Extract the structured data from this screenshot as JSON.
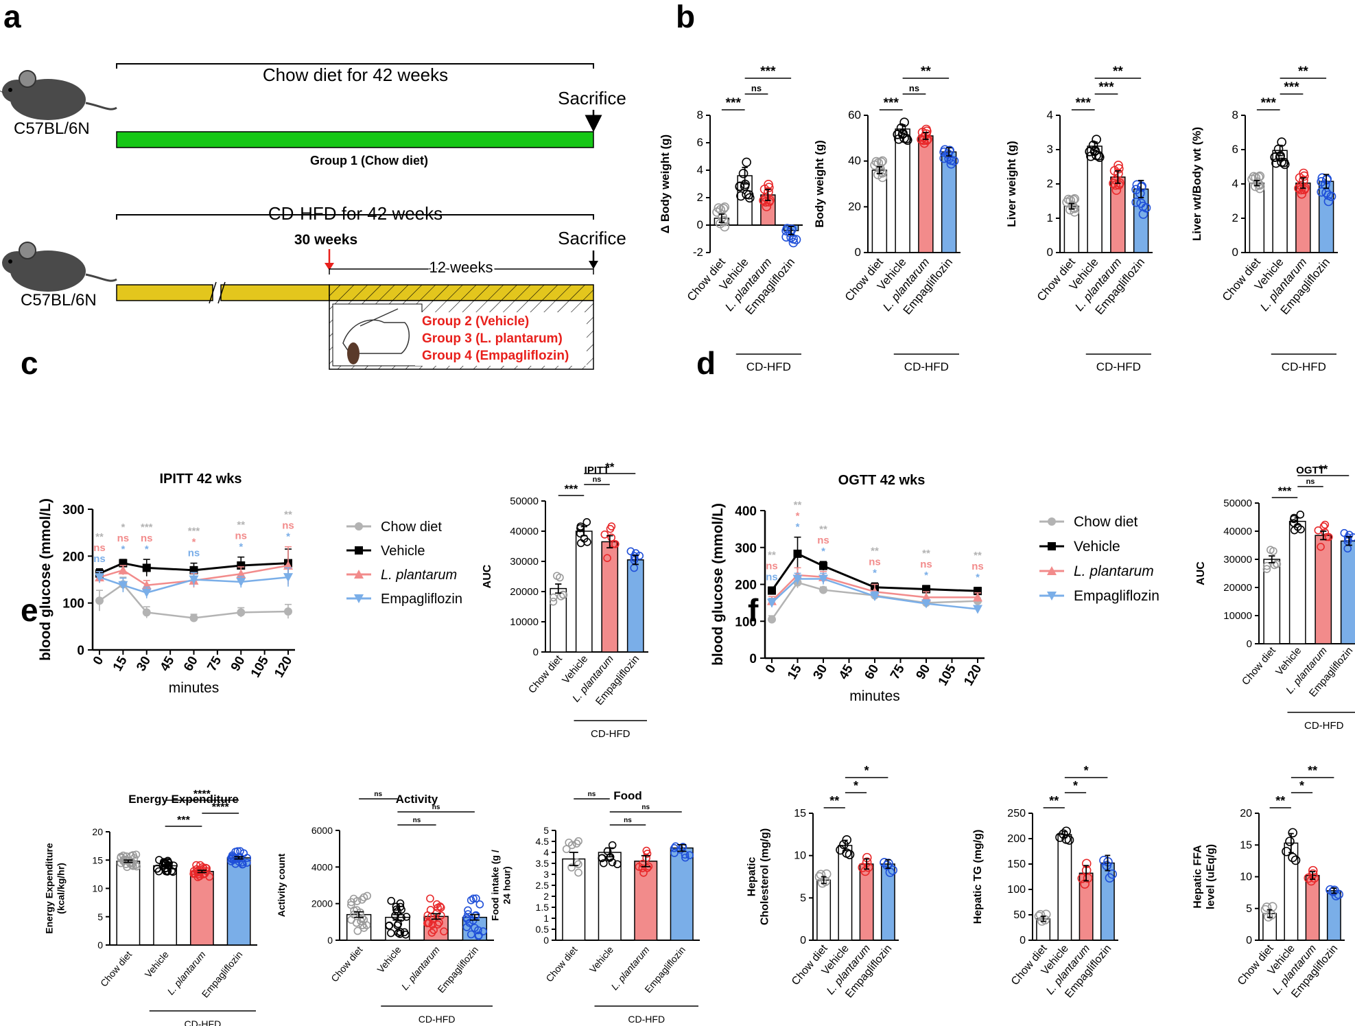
{
  "panel_labels": [
    "a",
    "b",
    "c",
    "d",
    "e",
    "f"
  ],
  "colors": {
    "chow": "#b3b3b3",
    "vehicle": "#000000",
    "lp": "#f28b8b",
    "lp_dot": "#e8282a",
    "empa": "#7aaee8",
    "empa_dot": "#2050d8",
    "green": "#16c716",
    "yellow": "#e3c61d",
    "red": "#e8201c"
  },
  "schematic": {
    "strain_label": "C57BL/6N",
    "chow_title": "Chow diet for 42 weeks",
    "sacrifice": "Sacrifice",
    "group1": "Group 1 (Chow diet)",
    "hfd_title": "CD-HFD for 42 weeks",
    "start_label": "30 weeks",
    "treatment_span": "12 weeks",
    "groups": [
      "Group 2 (Vehicle)",
      "Group 3 (L. plantarum)",
      "Group 4 (Empagliflozin)"
    ]
  },
  "common": {
    "groups": [
      "Chow diet",
      "Vehicle",
      "L. plantarum",
      "Empagliflozin"
    ],
    "hfd_label": "CD-HFD",
    "minutes": "minutes",
    "time_ticks": [
      "0",
      "15",
      "30",
      "45",
      "60",
      "75",
      "90",
      "105",
      "120"
    ]
  },
  "chart_data": [
    {
      "id": "b1",
      "type": "bar",
      "ylabel": "Δ Body weight  (g)",
      "ylim": [
        -2,
        8
      ],
      "yticks": [
        "-2",
        "0",
        "2",
        "4",
        "6",
        "8"
      ],
      "categories": [
        "Chow diet",
        "Vehicle",
        "L. plantarum",
        "Empagliflozin"
      ],
      "values": [
        0.5,
        3.6,
        2.2,
        -0.4
      ],
      "errors": [
        0.3,
        0.6,
        0.4,
        0.3
      ],
      "sig": [
        {
          "from": 0,
          "to": 1,
          "label": "***"
        },
        {
          "from": 1,
          "to": 2,
          "label": "ns"
        },
        {
          "from": 1,
          "to": 3,
          "label": "***"
        }
      ]
    },
    {
      "id": "b2",
      "type": "bar",
      "ylabel": "Body weight  (g)",
      "ylim": [
        0,
        60
      ],
      "yticks": [
        "0",
        "20",
        "40",
        "60"
      ],
      "categories": [
        "Chow diet",
        "Vehicle",
        "L. plantarum",
        "Empagliflozin"
      ],
      "values": [
        36,
        54,
        51,
        44
      ],
      "errors": [
        1.5,
        1.8,
        1.5,
        1.8
      ],
      "sig": [
        {
          "from": 0,
          "to": 1,
          "label": "***"
        },
        {
          "from": 1,
          "to": 2,
          "label": "ns"
        },
        {
          "from": 1,
          "to": 3,
          "label": "**"
        }
      ]
    },
    {
      "id": "b3",
      "type": "bar",
      "ylabel": "Liver weight  (g)",
      "ylim": [
        0,
        4
      ],
      "yticks": [
        "0",
        "1",
        "2",
        "3",
        "4"
      ],
      "categories": [
        "Chow diet",
        "Vehicle",
        "L. plantarum",
        "Empagliflozin"
      ],
      "values": [
        1.35,
        3.1,
        2.2,
        1.85
      ],
      "errors": [
        0.08,
        0.12,
        0.18,
        0.25
      ],
      "sig": [
        {
          "from": 0,
          "to": 1,
          "label": "***"
        },
        {
          "from": 1,
          "to": 2,
          "label": "***"
        },
        {
          "from": 1,
          "to": 3,
          "label": "**"
        }
      ]
    },
    {
      "id": "b4",
      "type": "bar",
      "ylabel": "Liver wt/Body wt  (%)",
      "ylim": [
        0,
        8
      ],
      "yticks": [
        "0",
        "2",
        "4",
        "6",
        "8"
      ],
      "categories": [
        "Chow diet",
        "Vehicle",
        "L. plantarum",
        "Empagliflozin"
      ],
      "values": [
        4.05,
        5.95,
        4.05,
        4.15
      ],
      "errors": [
        0.15,
        0.3,
        0.3,
        0.4
      ],
      "sig": [
        {
          "from": 0,
          "to": 1,
          "label": "***"
        },
        {
          "from": 1,
          "to": 2,
          "label": "***"
        },
        {
          "from": 1,
          "to": 3,
          "label": "**"
        }
      ]
    },
    {
      "id": "c_line",
      "type": "line",
      "title": "IPITT  42 wks",
      "ylabel": "blood glucose (mmol/L)",
      "xlabel": "minutes",
      "ylim": [
        0,
        300
      ],
      "yticks": [
        "0",
        "100",
        "200",
        "300"
      ],
      "x": [
        0,
        15,
        30,
        60,
        90,
        120
      ],
      "series": [
        {
          "name": "Chow diet",
          "values": [
            105,
            140,
            80,
            68,
            80,
            82
          ],
          "errors": [
            22,
            15,
            12,
            8,
            10,
            15
          ]
        },
        {
          "name": "Vehicle",
          "values": [
            163,
            185,
            175,
            170,
            180,
            185
          ],
          "errors": [
            10,
            8,
            18,
            15,
            18,
            30
          ]
        },
        {
          "name": "L. plantarum",
          "values": [
            155,
            170,
            138,
            148,
            162,
            180
          ],
          "errors": [
            12,
            10,
            10,
            15,
            15,
            40
          ]
        },
        {
          "name": "Empagliflozin",
          "values": [
            155,
            138,
            122,
            150,
            145,
            155
          ],
          "errors": [
            12,
            15,
            12,
            15,
            12,
            20
          ]
        }
      ],
      "star_rows": [
        [
          "**",
          "*",
          "***",
          "***",
          "**",
          "**"
        ],
        [
          "ns",
          "ns",
          "ns",
          "*",
          "ns",
          "ns"
        ],
        [
          "ns",
          "*",
          "*",
          "ns",
          "*",
          "*"
        ]
      ]
    },
    {
      "id": "c_auc",
      "type": "bar",
      "title": "IPITT",
      "ylabel": "AUC",
      "ylim": [
        0,
        50000
      ],
      "yticks": [
        "0",
        "10000",
        "20000",
        "30000",
        "40000",
        "50000"
      ],
      "categories": [
        "Chow diet",
        "Vehicle",
        "L. plantarum",
        "Empagliflozin"
      ],
      "values": [
        21000,
        40000,
        36500,
        30500
      ],
      "errors": [
        1500,
        1500,
        2000,
        1500
      ],
      "sig": [
        {
          "from": 0,
          "to": 1,
          "label": "***"
        },
        {
          "from": 1,
          "to": 2,
          "label": "ns"
        },
        {
          "from": 1,
          "to": 3,
          "label": "**"
        }
      ]
    },
    {
      "id": "d_line",
      "type": "line",
      "title": "OGTT  42 wks",
      "ylabel": "blood glucose (mmol/L)",
      "xlabel": "minutes",
      "ylim": [
        0,
        400
      ],
      "yticks": [
        "0",
        "100",
        "200",
        "300",
        "400"
      ],
      "x": [
        0,
        15,
        30,
        60,
        90,
        120
      ],
      "series": [
        {
          "name": "Chow diet",
          "values": [
            105,
            205,
            185,
            170,
            150,
            155
          ],
          "errors": [
            10,
            15,
            8,
            10,
            8,
            8
          ]
        },
        {
          "name": "Vehicle",
          "values": [
            183,
            283,
            250,
            192,
            187,
            182
          ],
          "errors": [
            10,
            45,
            12,
            12,
            10,
            10
          ]
        },
        {
          "name": "L. plantarum",
          "values": [
            155,
            225,
            220,
            180,
            165,
            165
          ],
          "errors": [
            12,
            20,
            15,
            20,
            15,
            12
          ]
        },
        {
          "name": "Empagliflozin",
          "values": [
            150,
            215,
            215,
            168,
            148,
            133
          ],
          "errors": [
            12,
            15,
            15,
            12,
            10,
            8
          ]
        }
      ],
      "star_rows": [
        [
          "**",
          "**",
          "**",
          "**",
          "**",
          "**"
        ],
        [
          "ns",
          "*",
          "ns",
          "ns",
          "ns",
          "ns"
        ],
        [
          "ns",
          "*",
          "*",
          "*",
          "*",
          "*"
        ]
      ]
    },
    {
      "id": "d_auc",
      "type": "bar",
      "title": "OGTT",
      "ylabel": "AUC",
      "ylim": [
        0,
        50000
      ],
      "yticks": [
        "0",
        "10000",
        "20000",
        "30000",
        "40000",
        "50000"
      ],
      "categories": [
        "Chow diet",
        "Vehicle",
        "L. plantarum",
        "Empagliflozin"
      ],
      "values": [
        30000,
        43500,
        38500,
        36500
      ],
      "errors": [
        1200,
        1200,
        1500,
        1500
      ],
      "sig": [
        {
          "from": 0,
          "to": 1,
          "label": "***"
        },
        {
          "from": 1,
          "to": 2,
          "label": "ns"
        },
        {
          "from": 1,
          "to": 3,
          "label": "**"
        }
      ]
    },
    {
      "id": "e1",
      "type": "bar",
      "title": "Energy Expenditure",
      "ylabel": "Energy Expenditure  (kcal/kg/hr)",
      "ylim": [
        0,
        20
      ],
      "yticks": [
        "0",
        "5",
        "10",
        "15",
        "20"
      ],
      "categories": [
        "Chow diet",
        "Vehicle",
        "L. plantarum",
        "Empagliflozin"
      ],
      "values": [
        14.8,
        14.0,
        13.0,
        15.4
      ],
      "errors": [
        0.2,
        0.2,
        0.2,
        0.2
      ],
      "sig": [
        {
          "from": 1,
          "to": 2,
          "label": "***"
        },
        {
          "from": 2,
          "to": 3,
          "label": "****"
        },
        {
          "from": 1,
          "to": 3,
          "label": "****"
        }
      ]
    },
    {
      "id": "e2",
      "type": "bar",
      "title": "Activity",
      "ylabel": "Activity count",
      "ylim": [
        0,
        6000
      ],
      "yticks": [
        "0",
        "2000",
        "4000",
        "6000"
      ],
      "categories": [
        "Chow diet",
        "Vehicle",
        "L. plantarum",
        "Empagliflozin"
      ],
      "values": [
        1400,
        1250,
        1300,
        1250
      ],
      "errors": [
        150,
        150,
        150,
        150
      ],
      "sig": [
        {
          "from": 1,
          "to": 2,
          "label": "ns"
        },
        {
          "from": 1,
          "to": 3,
          "label": "ns"
        },
        {
          "from": 0,
          "to": 1,
          "label": "ns"
        }
      ]
    },
    {
      "id": "e3",
      "type": "bar",
      "title": "Food",
      "ylabel": "Food intake  (g / 24 hour)",
      "ylim": [
        0,
        5
      ],
      "yticks": [
        "0",
        "0.5",
        "1",
        "1.5",
        "2",
        "2.5",
        "3",
        "3.5",
        "4",
        "4.5",
        "5"
      ],
      "categories": [
        "Chow diet",
        "Vehicle",
        "L. plantarum",
        "Empagliflozin"
      ],
      "values": [
        3.7,
        4.0,
        3.6,
        4.2
      ],
      "errors": [
        0.3,
        0.2,
        0.25,
        0.15
      ],
      "sig": [
        {
          "from": 1,
          "to": 2,
          "label": "ns"
        },
        {
          "from": 1,
          "to": 3,
          "label": "ns"
        },
        {
          "from": 0,
          "to": 1,
          "label": "ns"
        }
      ]
    },
    {
      "id": "f1",
      "type": "bar",
      "ylabel": "Hepatic Cholesterol (mg/g)",
      "ylim": [
        0,
        15
      ],
      "yticks": [
        "0",
        "5",
        "10",
        "15"
      ],
      "categories": [
        "Chow diet",
        "Vehicle",
        "L. plantarum",
        "Empagliflozin"
      ],
      "values": [
        7.1,
        11.2,
        9.0,
        9.0
      ],
      "errors": [
        0.4,
        0.6,
        0.6,
        0.5
      ],
      "sig": [
        {
          "from": 0,
          "to": 1,
          "label": "**"
        },
        {
          "from": 1,
          "to": 2,
          "label": "*"
        },
        {
          "from": 1,
          "to": 3,
          "label": "*"
        }
      ]
    },
    {
      "id": "f2",
      "type": "bar",
      "ylabel": "Hepatic TG (mg/g)",
      "ylim": [
        0,
        250
      ],
      "yticks": [
        "0",
        "50",
        "100",
        "150",
        "200",
        "250"
      ],
      "categories": [
        "Chow diet",
        "Vehicle",
        "L. plantarum",
        "Empagliflozin"
      ],
      "values": [
        42,
        208,
        132,
        152
      ],
      "errors": [
        5,
        6,
        15,
        15
      ],
      "sig": [
        {
          "from": 0,
          "to": 1,
          "label": "**"
        },
        {
          "from": 1,
          "to": 2,
          "label": "*"
        },
        {
          "from": 1,
          "to": 3,
          "label": "*"
        }
      ]
    },
    {
      "id": "f3",
      "type": "bar",
      "ylabel": "Hepatic FFA level (uEq/g)",
      "ylim": [
        0,
        20
      ],
      "yticks": [
        "0",
        "5",
        "10",
        "15",
        "20"
      ],
      "categories": [
        "Chow diet",
        "Vehicle",
        "L. plantarum",
        "Empagliflozin"
      ],
      "values": [
        4.2,
        15.3,
        10.2,
        7.8
      ],
      "errors": [
        0.6,
        1.5,
        0.6,
        0.4
      ],
      "sig": [
        {
          "from": 0,
          "to": 1,
          "label": "**"
        },
        {
          "from": 1,
          "to": 2,
          "label": "*"
        },
        {
          "from": 1,
          "to": 3,
          "label": "**"
        }
      ]
    }
  ]
}
